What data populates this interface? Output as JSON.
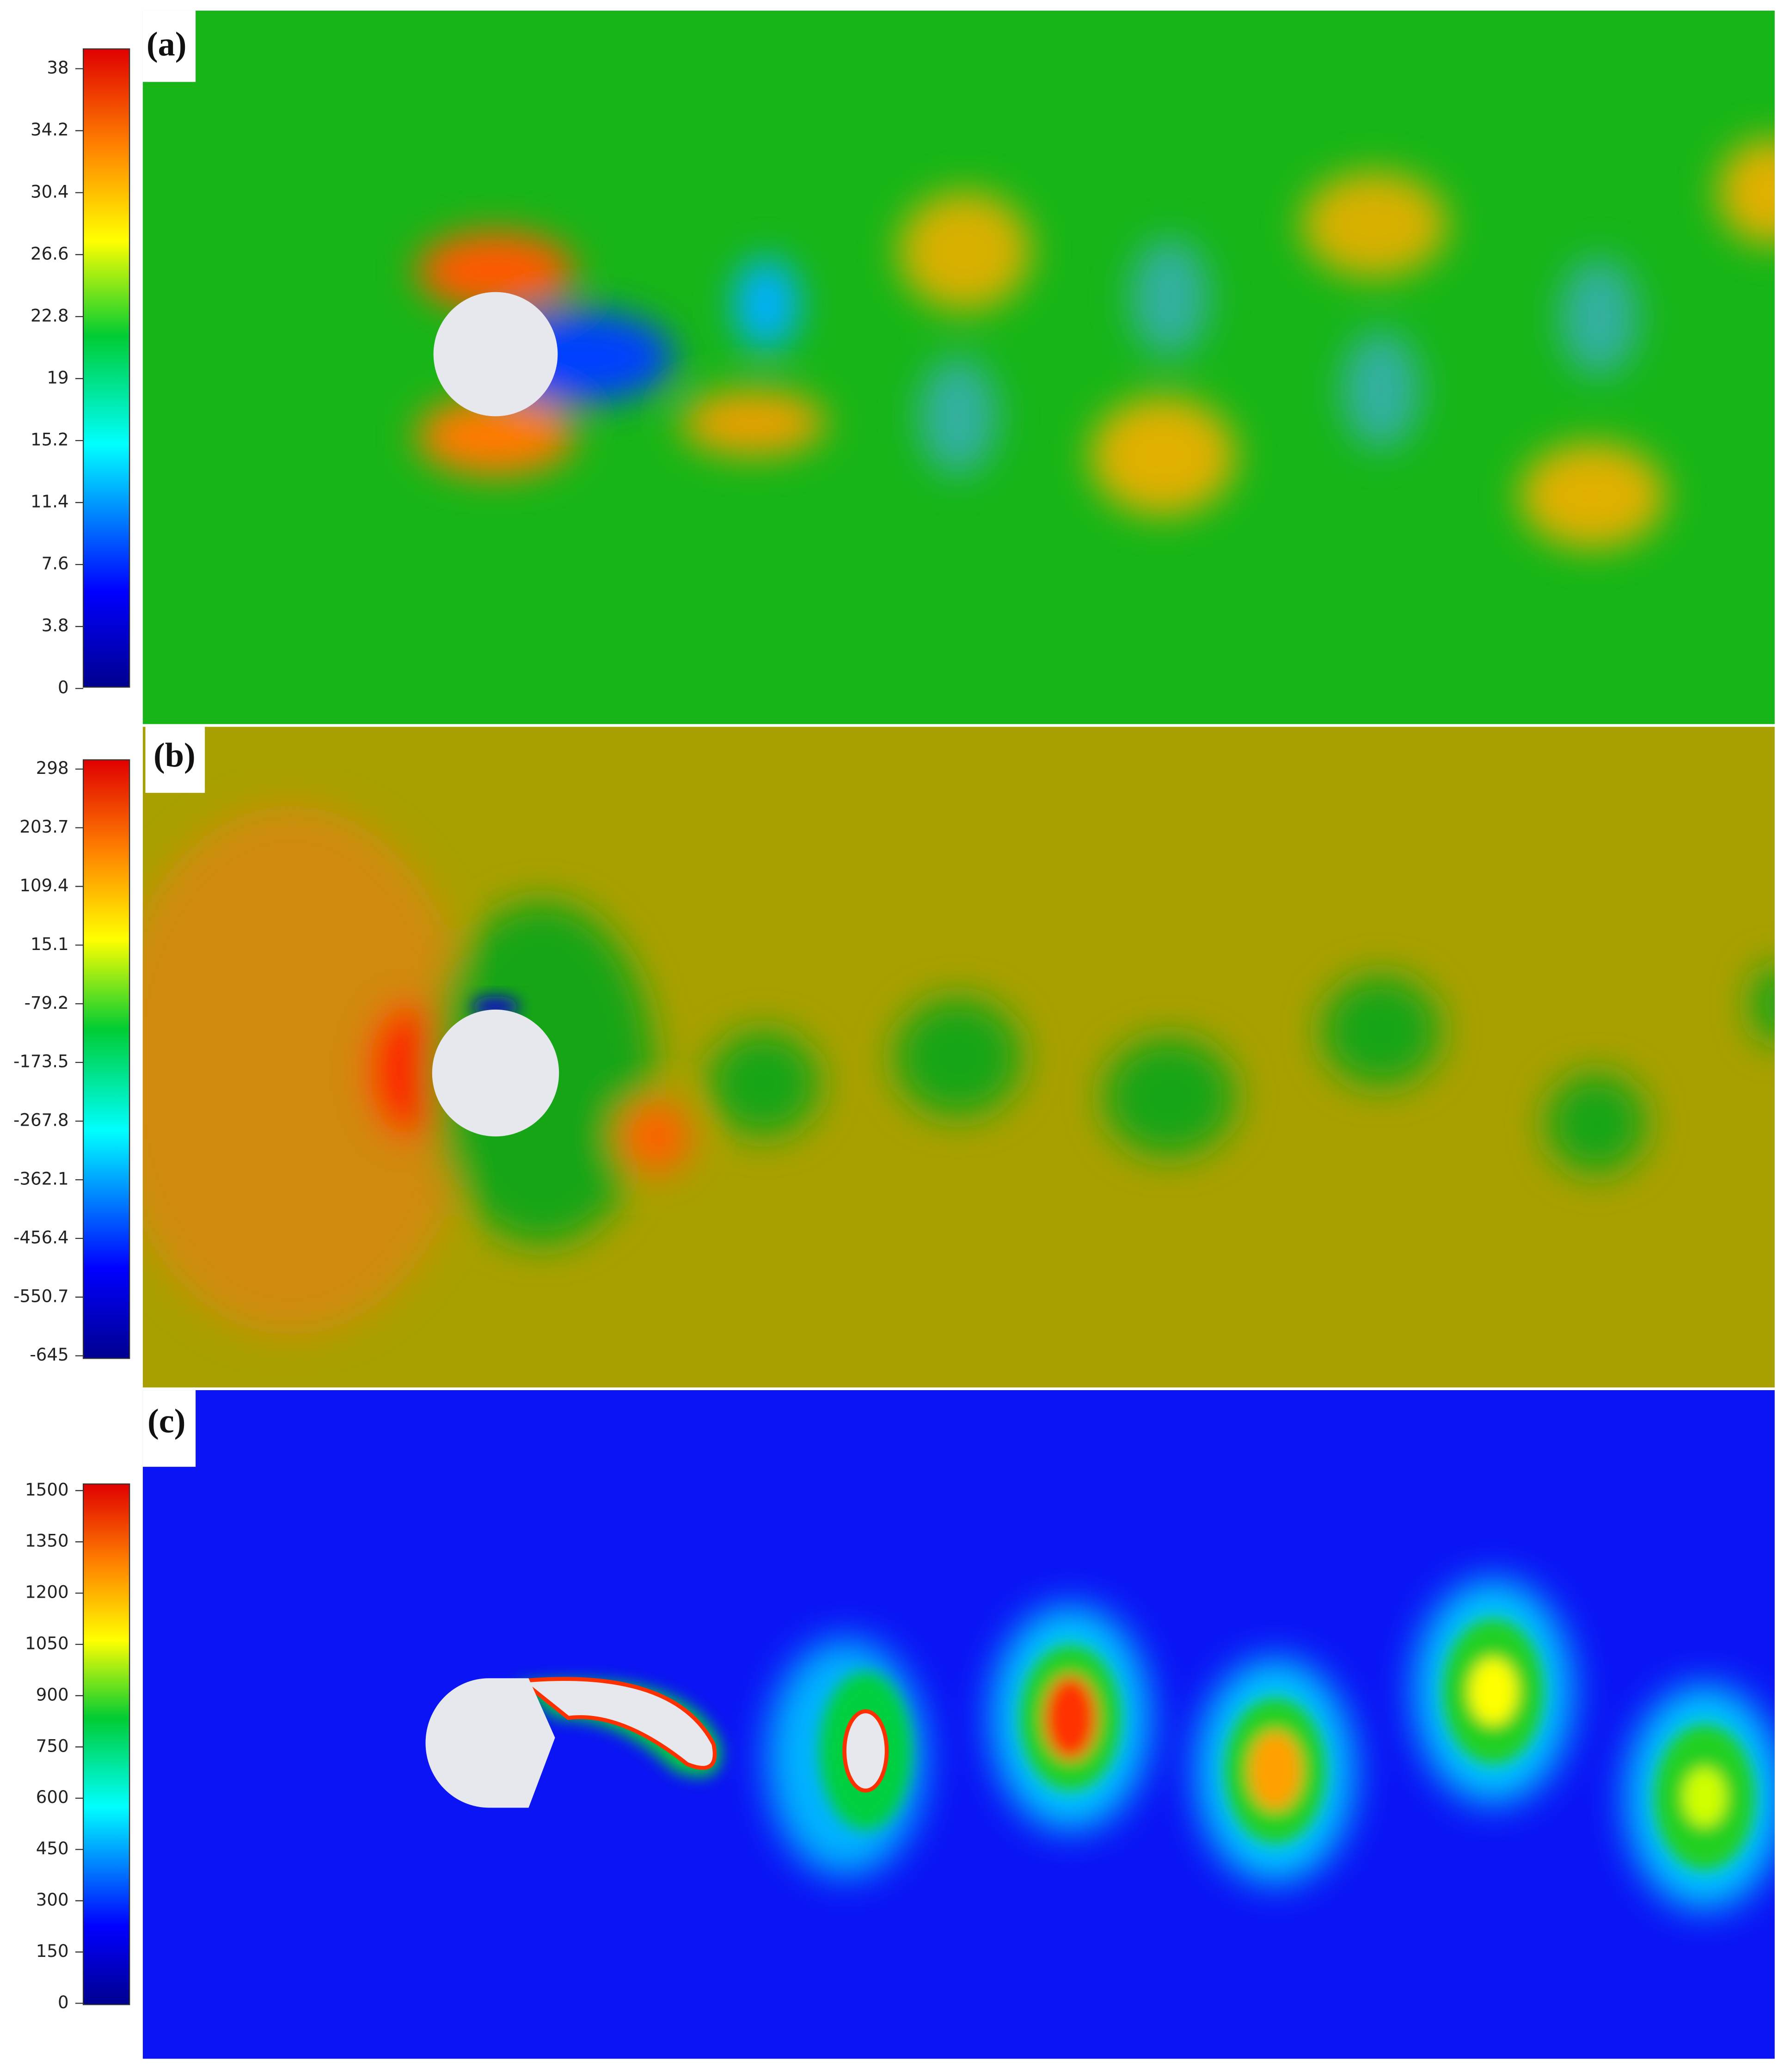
{
  "panels": [
    {
      "label": "(a)",
      "colorbar": {
        "lim": [
          0,
          38
        ],
        "ticks": [
          38,
          34.2,
          30.4,
          26.6,
          22.8,
          19,
          15.2,
          11.4,
          7.6,
          3.8,
          0
        ]
      }
    },
    {
      "label": "(b)",
      "colorbar": {
        "lim": [
          -645,
          298
        ],
        "ticks": [
          298,
          203.7,
          109.4,
          15.1,
          -79.2,
          -173.5,
          -267.8,
          -362.1,
          -456.4,
          -550.7,
          -645
        ]
      }
    },
    {
      "label": "(c)",
      "colorbar": {
        "lim": [
          0,
          1500
        ],
        "ticks": [
          1500,
          1350,
          1200,
          1050,
          900,
          750,
          600,
          450,
          300,
          150,
          0
        ]
      }
    }
  ]
}
